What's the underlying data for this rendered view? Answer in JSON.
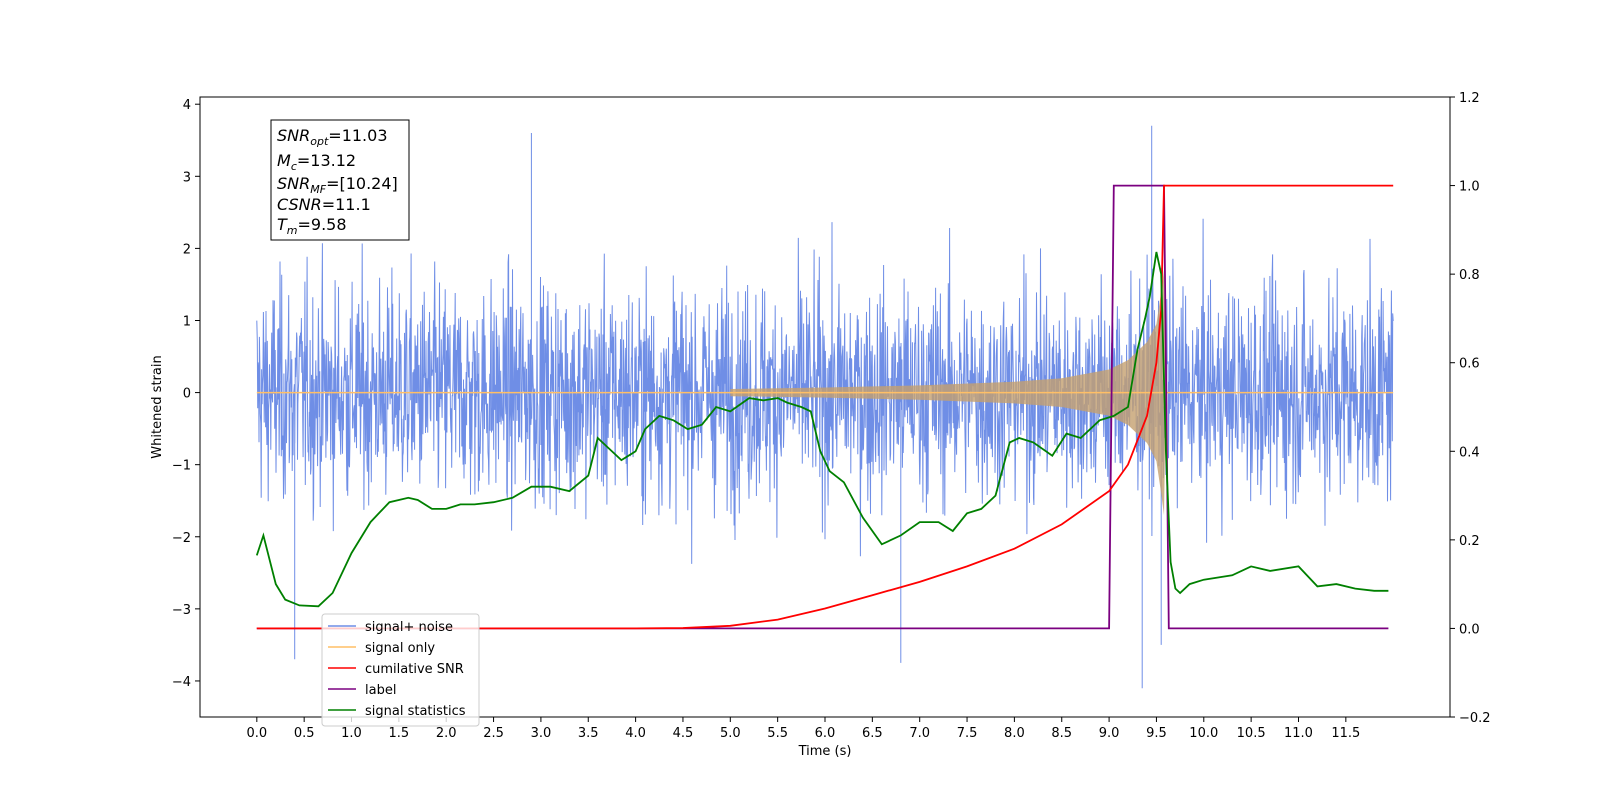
{
  "chart_data": {
    "type": "line",
    "title": "",
    "xlabel": "Time (s)",
    "ylabel": "Whitened strain",
    "ylabel_right": "",
    "xlim": [
      -0.6,
      12.6
    ],
    "ylim_left": [
      -4.5,
      4.1
    ],
    "ylim_right": [
      -0.2,
      1.2
    ],
    "x_ticks": [
      0.0,
      0.5,
      1.0,
      1.5,
      2.0,
      2.5,
      3.0,
      3.5,
      4.0,
      4.5,
      5.0,
      5.5,
      6.0,
      6.5,
      7.0,
      7.5,
      8.0,
      8.5,
      9.0,
      9.5,
      10.0,
      10.5,
      11.0,
      11.5
    ],
    "x_tick_labels": [
      "0.0",
      "0.5",
      "1.0",
      "1.5",
      "2.0",
      "2.5",
      "3.0",
      "3.5",
      "4.0",
      "4.5",
      "5.0",
      "5.5",
      "6.0",
      "6.5",
      "7.0",
      "7.5",
      "8.0",
      "8.5",
      "9.0",
      "9.5",
      "10.0",
      "10.5",
      "11.0",
      "11.5"
    ],
    "y_ticks_left": [
      4,
      3,
      2,
      1,
      0,
      -1,
      -2,
      -3,
      -4
    ],
    "y_tick_labels_left": [
      "4",
      "3",
      "2",
      "1",
      "0",
      "−1",
      "−2",
      "−3",
      "−4"
    ],
    "y_ticks_right": [
      1.2,
      1.0,
      0.8,
      0.6,
      0.4,
      0.2,
      0.0,
      -0.2
    ],
    "y_tick_labels_right": [
      "1.2",
      "1.0",
      "0.8",
      "0.6",
      "0.4",
      "0.2",
      "0.0",
      "−0.2"
    ],
    "grid": false,
    "legend_position": "lower-left",
    "info_box": {
      "snr_opt_value": "=11.03",
      "mc_value": "=13.12",
      "snr_mf_value": "=[10.24]",
      "csnr_value": "=11.1",
      "tm_value": "=9.58"
    },
    "series": [
      {
        "name": "signal+ noise",
        "axis": "left",
        "color": "#6f8ee6",
        "x_range": [
          0.0,
          12.0
        ],
        "noise_amplitude_range": [
          -3.7,
          3.7
        ],
        "notable_peaks": [
          {
            "x": 0.4,
            "y": -3.7
          },
          {
            "x": 2.9,
            "y": 3.6
          },
          {
            "x": 6.8,
            "y": -3.75
          },
          {
            "x": 9.35,
            "y": -4.1
          },
          {
            "x": 9.45,
            "y": 3.7
          },
          {
            "x": 9.55,
            "y": -3.5
          }
        ]
      },
      {
        "name": "signal only",
        "axis": "left",
        "color": "#ffbf66",
        "chirp_start": 5.0,
        "merger_time": 9.58,
        "envelope": [
          [
            5.0,
            0.05
          ],
          [
            6.0,
            0.07
          ],
          [
            7.0,
            0.1
          ],
          [
            8.0,
            0.15
          ],
          [
            8.5,
            0.2
          ],
          [
            9.0,
            0.32
          ],
          [
            9.2,
            0.45
          ],
          [
            9.4,
            0.7
          ],
          [
            9.5,
            0.95
          ],
          [
            9.55,
            1.4
          ],
          [
            9.58,
            1.7
          ],
          [
            9.6,
            0.0
          ]
        ],
        "after_merger": 0.0
      },
      {
        "name": "cumilative SNR",
        "axis": "right",
        "color": "#ff0000",
        "x": [
          0.0,
          4.0,
          4.5,
          5.0,
          5.5,
          6.0,
          6.5,
          7.0,
          7.5,
          8.0,
          8.5,
          9.0,
          9.2,
          9.4,
          9.5,
          9.55,
          9.58,
          12.0
        ],
        "values": [
          0.0,
          0.0,
          0.001,
          0.006,
          0.02,
          0.045,
          0.075,
          0.105,
          0.14,
          0.18,
          0.235,
          0.31,
          0.37,
          0.48,
          0.6,
          0.72,
          1.0,
          1.0
        ]
      },
      {
        "name": "label",
        "axis": "right",
        "color": "#7b0080",
        "x": [
          0.0,
          9.0,
          9.05,
          9.58,
          9.63,
          11.95
        ],
        "values": [
          0.0,
          0.0,
          1.0,
          1.0,
          0.0,
          0.0
        ]
      },
      {
        "name": "signal statistics",
        "axis": "right",
        "color": "#008000",
        "x": [
          0.0,
          0.07,
          0.2,
          0.3,
          0.45,
          0.65,
          0.8,
          1.0,
          1.2,
          1.4,
          1.6,
          1.7,
          1.85,
          2.0,
          2.15,
          2.3,
          2.5,
          2.7,
          2.9,
          3.1,
          3.3,
          3.5,
          3.6,
          3.7,
          3.85,
          4.0,
          4.1,
          4.25,
          4.4,
          4.55,
          4.7,
          4.85,
          5.0,
          5.2,
          5.35,
          5.5,
          5.6,
          5.75,
          5.85,
          5.95,
          6.05,
          6.2,
          6.4,
          6.6,
          6.8,
          7.0,
          7.2,
          7.35,
          7.5,
          7.65,
          7.8,
          7.95,
          8.05,
          8.2,
          8.4,
          8.55,
          8.7,
          8.9,
          9.05,
          9.2,
          9.3,
          9.38,
          9.43,
          9.5,
          9.55,
          9.6,
          9.65,
          9.7,
          9.75,
          9.85,
          10.0,
          10.3,
          10.5,
          10.7,
          11.0,
          11.2,
          11.4,
          11.6,
          11.8,
          11.95
        ],
        "values": [
          0.165,
          0.21,
          0.1,
          0.065,
          0.052,
          0.05,
          0.08,
          0.17,
          0.24,
          0.285,
          0.295,
          0.29,
          0.27,
          0.27,
          0.28,
          0.28,
          0.285,
          0.295,
          0.32,
          0.32,
          0.31,
          0.345,
          0.43,
          0.41,
          0.38,
          0.4,
          0.45,
          0.48,
          0.47,
          0.45,
          0.46,
          0.5,
          0.49,
          0.52,
          0.515,
          0.52,
          0.51,
          0.5,
          0.49,
          0.4,
          0.355,
          0.33,
          0.25,
          0.19,
          0.21,
          0.24,
          0.24,
          0.22,
          0.26,
          0.27,
          0.3,
          0.42,
          0.43,
          0.42,
          0.39,
          0.44,
          0.43,
          0.47,
          0.48,
          0.5,
          0.63,
          0.7,
          0.75,
          0.85,
          0.8,
          0.4,
          0.15,
          0.09,
          0.08,
          0.1,
          0.11,
          0.12,
          0.14,
          0.13,
          0.14,
          0.095,
          0.1,
          0.09,
          0.085,
          0.085
        ]
      }
    ]
  }
}
